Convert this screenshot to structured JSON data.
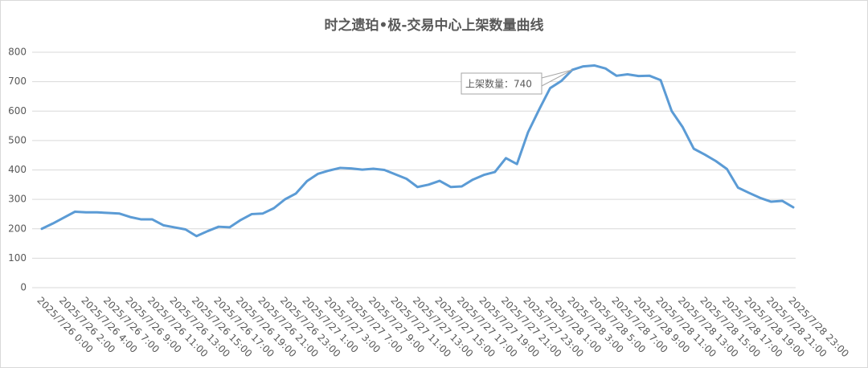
{
  "chart_data": {
    "type": "line",
    "title": "时之遗珀•极-交易中心上架数量曲线",
    "categories": [
      "2025/7/26 0:00",
      null,
      "2025/7/26 2:00",
      null,
      "2025/7/26 4:00",
      null,
      "2025/7/26 7:00",
      null,
      "2025/7/26 9:00",
      null,
      "2025/7/26 11:00",
      null,
      "2025/7/26 13:00",
      null,
      "2025/7/26 15:00",
      null,
      "2025/7/26 17:00",
      null,
      "2025/7/26 19:00",
      null,
      "2025/7/26 21:00",
      null,
      "2025/7/26 23:00",
      null,
      "2025/7/27 1:00",
      null,
      "2025/7/27 3:00",
      null,
      "2025/7/27 7:00",
      null,
      "2025/7/27 9:00",
      null,
      "2025/7/27 11:00",
      null,
      "2025/7/27 13:00",
      null,
      "2025/7/27 15:00",
      null,
      "2025/7/27 17:00",
      null,
      "2025/7/27 19:00",
      null,
      "2025/7/27 21:00",
      null,
      "2025/7/27 23:00",
      null,
      "2025/7/28 1:00",
      null,
      "2025/7/28 3:00",
      null,
      "2025/7/28 5:00",
      null,
      "2025/7/28 7:00",
      null,
      "2025/7/28 9:00",
      null,
      "2025/7/28 11:00",
      null,
      "2025/7/28 13:00",
      null,
      "2025/7/28 15:00",
      null,
      "2025/7/28 17:00",
      null,
      "2025/7/28 19:00",
      null,
      "2025/7/28 21:00",
      null,
      "2025/7/28 23:00"
    ],
    "series": [
      {
        "color": "#5b9bd5",
        "values": [
          200,
          218,
          238,
          258,
          256,
          256,
          254,
          252,
          240,
          232,
          232,
          212,
          205,
          198,
          175,
          192,
          207,
          205,
          230,
          250,
          252,
          270,
          300,
          320,
          362,
          387,
          398,
          407,
          405,
          401,
          404,
          400,
          385,
          370,
          342,
          350,
          363,
          342,
          344,
          367,
          383,
          393,
          440,
          420,
          528,
          605,
          678,
          702,
          740,
          752,
          755,
          745,
          720,
          725,
          719,
          720,
          705,
          600,
          545,
          472,
          452,
          430,
          403,
          340,
          322,
          305,
          292,
          295,
          273
        ]
      }
    ],
    "annotations": [
      {
        "text": "上架数量：740",
        "index": 48
      }
    ],
    "ylim": [
      0,
      800
    ],
    "yticks": [
      0,
      100,
      200,
      300,
      400,
      500,
      600,
      700,
      800
    ],
    "grid": true
  }
}
